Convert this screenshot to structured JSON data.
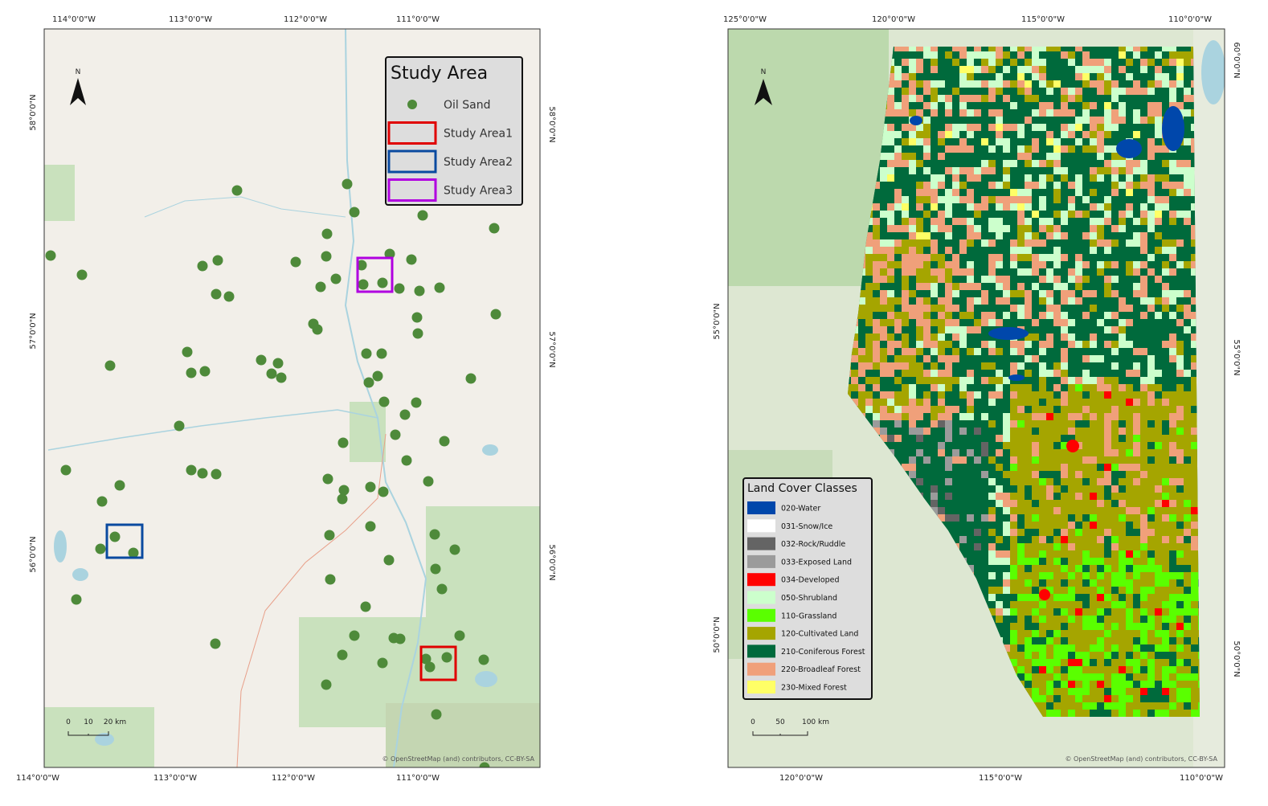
{
  "left_map": {
    "top_labels": [
      "114°0'0\"W",
      "113°0'0\"W",
      "112°0'0\"W",
      "111°0'0\"W"
    ],
    "bottom_labels": [
      "114°0'0\"W",
      "113°0'0\"W",
      "112°0'0\"W",
      "111°0'0\"W"
    ],
    "left_labels": [
      "58°0'0\"N",
      "57°0'0\"N",
      "56°0'0\"N"
    ],
    "right_labels": [
      "58°0'0\"N",
      "57°0'0\"N",
      "56°0'0\"N"
    ],
    "north": "N",
    "legend": {
      "title": "Study Area",
      "items": [
        {
          "label": "Oil Sand",
          "color": "#4e8a3a"
        },
        {
          "label": "Study Area1",
          "color": "#e00000"
        },
        {
          "label": "Study Area2",
          "color": "#0a4aa0"
        },
        {
          "label": "Study Area3",
          "color": "#b000e0"
        }
      ]
    },
    "scale": [
      "0",
      "10",
      "20 km"
    ],
    "attribution": "© OpenStreetMap (and) contributors, CC-BY-SA"
  },
  "right_map": {
    "top_labels": [
      "125°0'0\"W",
      "120°0'0\"W",
      "115°0'0\"W",
      "110°0'0\"W"
    ],
    "bottom_labels": [
      "120°0'0\"W",
      "115°0'0\"W",
      "110°0'0\"W"
    ],
    "left_labels": [
      "55°0'0\"N",
      "50°0'0\"N"
    ],
    "right_labels": [
      "60°0'0\"N",
      "55°0'0\"N",
      "50°0'0\"N"
    ],
    "north": "N",
    "legend": {
      "title": "Land Cover Classes",
      "items": [
        {
          "label": "020-Water",
          "color": "#0047ab"
        },
        {
          "label": "031-Snow/Ice",
          "color": "#ffffff"
        },
        {
          "label": "032-Rock/Ruddle",
          "color": "#646464"
        },
        {
          "label": "033-Exposed Land",
          "color": "#9b9b9b"
        },
        {
          "label": "034-Developed",
          "color": "#ff0000"
        },
        {
          "label": "050-Shrubland",
          "color": "#ccffcc"
        },
        {
          "label": "110-Grassland",
          "color": "#5aff00"
        },
        {
          "label": "120-Cultivated Land",
          "color": "#a5a500"
        },
        {
          "label": "210-Coniferous Forest",
          "color": "#006a3c"
        },
        {
          "label": "220-Broadleaf Forest",
          "color": "#f0a07a"
        },
        {
          "label": "230-Mixed Forest",
          "color": "#ffff66"
        }
      ]
    },
    "scale": [
      "0",
      "50",
      "100 km"
    ],
    "attribution": "© OpenStreetMap (and) contributors, CC-BY-SA"
  }
}
